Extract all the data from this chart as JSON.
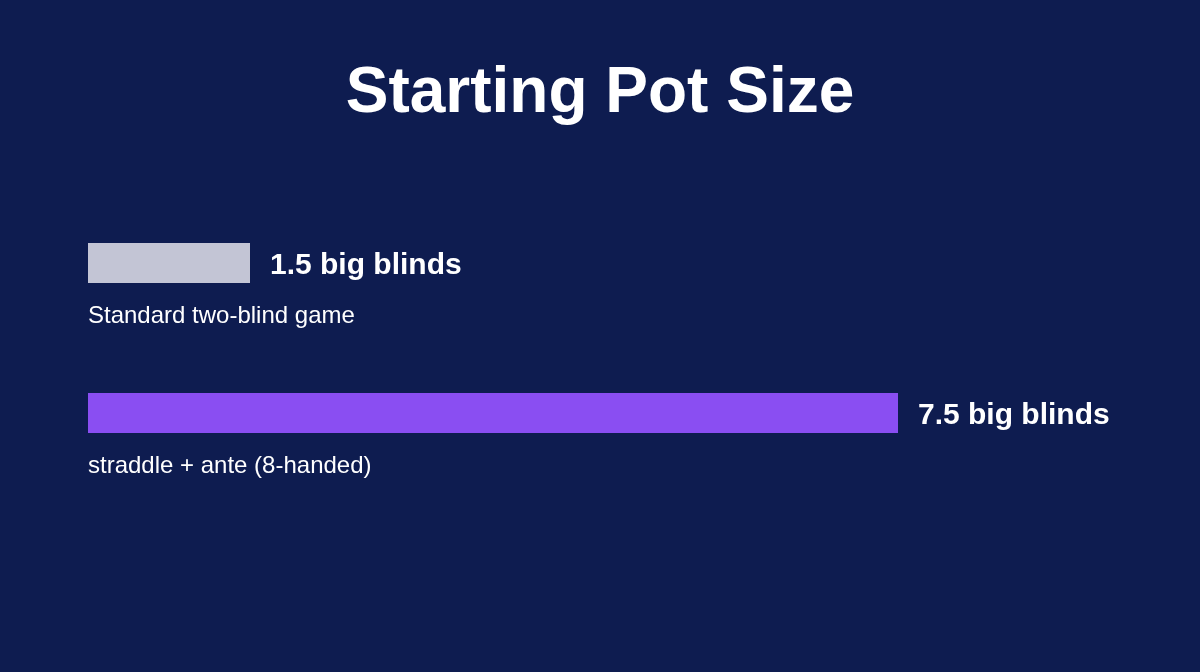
{
  "chart_data": {
    "type": "bar",
    "orientation": "horizontal",
    "title": "Starting Pot Size",
    "categories": [
      "Standard two-blind game",
      "straddle + ante (8-handed)"
    ],
    "values": [
      1.5,
      7.5
    ],
    "colors": [
      "#c3c5d5",
      "#8a4ef2"
    ],
    "value_labels": [
      "1.5 big blinds",
      "7.5 big blinds"
    ]
  }
}
